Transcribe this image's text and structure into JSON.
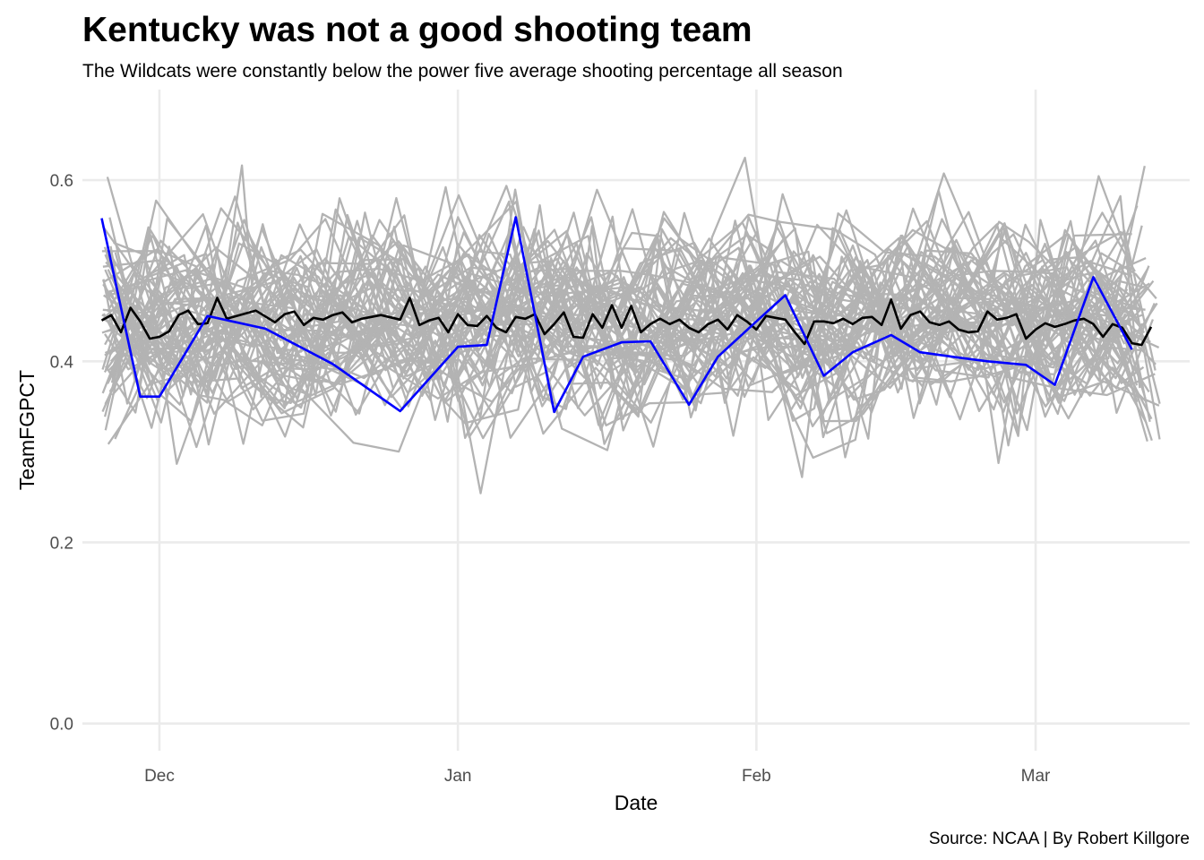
{
  "chart_data": {
    "type": "line",
    "title": "Kentucky was not a good shooting team",
    "subtitle": "The Wildcats were constantly below the power five average shooting percentage all season",
    "xlabel": "Date",
    "ylabel": "TeamFGPCT",
    "caption": "Source: NCAA | By Robert Killgore",
    "x_range": [
      "2019-11-23",
      "2020-03-17"
    ],
    "ylim": [
      -0.03,
      0.7
    ],
    "x_ticks": [
      {
        "date": "2019-12-01",
        "label": "Dec"
      },
      {
        "date": "2020-01-01",
        "label": "Jan"
      },
      {
        "date": "2020-02-01",
        "label": "Feb"
      },
      {
        "date": "2020-03-01",
        "label": "Mar"
      }
    ],
    "y_ticks": [
      {
        "value": 0.0,
        "label": "0.0"
      },
      {
        "value": 0.2,
        "label": "0.2"
      },
      {
        "value": 0.4,
        "label": "0.4"
      },
      {
        "value": 0.6,
        "label": "0.6"
      }
    ],
    "grid": true,
    "background_series": {
      "color": "#b3b3b3",
      "count": 65,
      "value_center": 0.445,
      "value_spread": 0.06,
      "value_min": 0.24,
      "value_max": 0.68
    },
    "series": [
      {
        "color": "#000000",
        "x": [
          "2019-11-25",
          "2019-11-26",
          "2019-11-27",
          "2019-11-28",
          "2019-11-29",
          "2019-11-30",
          "2019-12-01",
          "2019-12-02",
          "2019-12-03",
          "2019-12-04",
          "2019-12-05",
          "2019-12-06",
          "2019-12-07",
          "2019-12-08",
          "2019-12-10",
          "2019-12-11",
          "2019-12-13",
          "2019-12-14",
          "2019-12-15",
          "2019-12-16",
          "2019-12-17",
          "2019-12-18",
          "2019-12-19",
          "2019-12-20",
          "2019-12-21",
          "2019-12-22",
          "2019-12-23",
          "2019-12-24",
          "2019-12-26",
          "2019-12-27",
          "2019-12-28",
          "2019-12-29",
          "2019-12-30",
          "2019-12-31",
          "2020-01-01",
          "2020-01-02",
          "2020-01-03",
          "2020-01-04",
          "2020-01-05",
          "2020-01-06",
          "2020-01-07",
          "2020-01-08",
          "2020-01-09",
          "2020-01-10",
          "2020-01-11",
          "2020-01-12",
          "2020-01-13",
          "2020-01-14",
          "2020-01-15",
          "2020-01-16",
          "2020-01-17",
          "2020-01-18",
          "2020-01-19",
          "2020-01-20",
          "2020-01-21",
          "2020-01-22",
          "2020-01-23",
          "2020-01-24",
          "2020-01-25",
          "2020-01-26",
          "2020-01-27",
          "2020-01-28",
          "2020-01-29",
          "2020-01-30",
          "2020-01-31",
          "2020-02-01",
          "2020-02-02",
          "2020-02-03",
          "2020-02-04",
          "2020-02-05",
          "2020-02-06",
          "2020-02-07",
          "2020-02-08",
          "2020-02-09",
          "2020-02-10",
          "2020-02-11",
          "2020-02-12",
          "2020-02-13",
          "2020-02-14",
          "2020-02-15",
          "2020-02-16",
          "2020-02-17",
          "2020-02-18",
          "2020-02-19",
          "2020-02-20",
          "2020-02-21",
          "2020-02-22",
          "2020-02-23",
          "2020-02-24",
          "2020-02-25",
          "2020-02-26",
          "2020-02-27",
          "2020-02-28",
          "2020-02-29",
          "2020-03-01",
          "2020-03-02",
          "2020-03-03",
          "2020-03-04",
          "2020-03-05",
          "2020-03-06",
          "2020-03-07",
          "2020-03-08",
          "2020-03-09",
          "2020-03-10",
          "2020-03-11",
          "2020-03-12",
          "2020-03-13"
        ],
        "values": [
          0.445,
          0.451,
          0.432,
          0.459,
          0.444,
          0.425,
          0.427,
          0.433,
          0.451,
          0.456,
          0.441,
          0.442,
          0.47,
          0.447,
          0.453,
          0.456,
          0.443,
          0.452,
          0.455,
          0.44,
          0.448,
          0.446,
          0.451,
          0.454,
          0.443,
          0.447,
          0.449,
          0.451,
          0.446,
          0.47,
          0.44,
          0.445,
          0.448,
          0.432,
          0.452,
          0.44,
          0.439,
          0.45,
          0.437,
          0.432,
          0.449,
          0.447,
          0.452,
          0.43,
          0.441,
          0.454,
          0.427,
          0.426,
          0.452,
          0.437,
          0.462,
          0.437,
          0.461,
          0.432,
          0.441,
          0.447,
          0.441,
          0.446,
          0.437,
          0.432,
          0.441,
          0.446,
          0.435,
          0.451,
          0.444,
          0.435,
          0.45,
          0.448,
          0.446,
          0.432,
          0.419,
          0.444,
          0.444,
          0.442,
          0.447,
          0.441,
          0.448,
          0.449,
          0.44,
          0.468,
          0.436,
          0.451,
          0.455,
          0.443,
          0.44,
          0.444,
          0.435,
          0.432,
          0.433,
          0.455,
          0.446,
          0.448,
          0.452,
          0.425,
          0.435,
          0.442,
          0.438,
          0.441,
          0.445,
          0.447,
          0.441,
          0.427,
          0.441,
          0.437,
          0.42,
          0.418,
          0.438
        ]
      },
      {
        "color": "#0000ff",
        "x": [
          "2019-11-25",
          "2019-11-29",
          "2019-12-01",
          "2019-12-06",
          "2019-12-12",
          "2019-12-19",
          "2019-12-26",
          "2020-01-01",
          "2020-01-04",
          "2020-01-07",
          "2020-01-11",
          "2020-01-14",
          "2020-01-18",
          "2020-01-21",
          "2020-01-25",
          "2020-01-28",
          "2020-02-01",
          "2020-02-04",
          "2020-02-08",
          "2020-02-11",
          "2020-02-15",
          "2020-02-18",
          "2020-02-22",
          "2020-02-25",
          "2020-02-29",
          "2020-03-03",
          "2020-03-07",
          "2020-03-11"
        ],
        "values": [
          0.558,
          0.361,
          0.361,
          0.45,
          0.436,
          0.397,
          0.345,
          0.416,
          0.418,
          0.559,
          0.344,
          0.405,
          0.421,
          0.422,
          0.352,
          0.405,
          0.444,
          0.473,
          0.384,
          0.41,
          0.429,
          0.41,
          0.404,
          0.4,
          0.396,
          0.374,
          0.493,
          0.413
        ]
      }
    ]
  }
}
